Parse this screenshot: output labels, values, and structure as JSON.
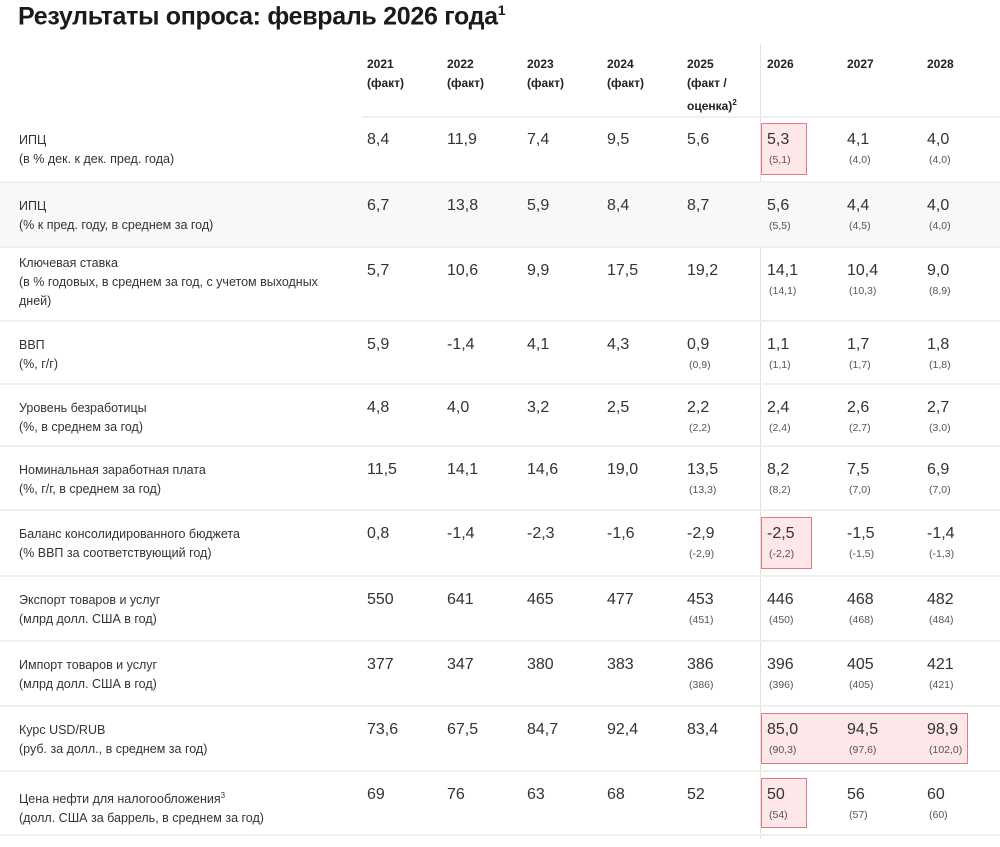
{
  "title": "Результаты опроса: февраль 2026 года",
  "title_footnote": "1",
  "highlight_color": "#fde7e8",
  "highlight_border": "#e07a7f",
  "columns": [
    {
      "year": "2021",
      "note": "(факт)"
    },
    {
      "year": "2022",
      "note": "(факт)"
    },
    {
      "year": "2023",
      "note": "(факт)"
    },
    {
      "year": "2024",
      "note": "(факт)"
    },
    {
      "year": "2025",
      "note": "(факт /",
      "note2": "оценка)",
      "footnote": "2"
    },
    {
      "year": "2026"
    },
    {
      "year": "2027"
    },
    {
      "year": "2028"
    }
  ],
  "rows": [
    {
      "label": "ИПЦ",
      "sub": "(в % дек. к дек. пред. года)",
      "values": [
        "8,4",
        "11,9",
        "7,4",
        "9,5",
        "5,6",
        "5,3",
        "4,1",
        "4,0"
      ],
      "prev": [
        "",
        "",
        "",
        "",
        "",
        "(5,1)",
        "(4,0)",
        "(4,0)"
      ],
      "highlight": [
        "2026"
      ]
    },
    {
      "label": "ИПЦ",
      "sub": "(% к пред. году, в среднем за год)",
      "values": [
        "6,7",
        "13,8",
        "5,9",
        "8,4",
        "8,7",
        "5,6",
        "4,4",
        "4,0"
      ],
      "prev": [
        "",
        "",
        "",
        "",
        "",
        "(5,5)",
        "(4,5)",
        "(4,0)"
      ],
      "highlight": []
    },
    {
      "label": "Ключевая ставка",
      "sub": "(в % годовых, в среднем за год, с учетом выходных",
      "sub2": "дней)",
      "values": [
        "5,7",
        "10,6",
        "9,9",
        "17,5",
        "19,2",
        "14,1",
        "10,4",
        "9,0"
      ],
      "prev": [
        "",
        "",
        "",
        "",
        "",
        "(14,1)",
        "(10,3)",
        "(8,9)"
      ],
      "highlight": []
    },
    {
      "label": "ВВП",
      "sub": "(%, г/г)",
      "values": [
        "5,9",
        "-1,4",
        "4,1",
        "4,3",
        "0,9",
        "1,1",
        "1,7",
        "1,8"
      ],
      "prev": [
        "",
        "",
        "",
        "",
        "(0,9)",
        "(1,1)",
        "(1,7)",
        "(1,8)"
      ],
      "highlight": []
    },
    {
      "label": "Уровень безработицы",
      "sub": "(%, в среднем за год)",
      "values": [
        "4,8",
        "4,0",
        "3,2",
        "2,5",
        "2,2",
        "2,4",
        "2,6",
        "2,7"
      ],
      "prev": [
        "",
        "",
        "",
        "",
        "(2,2)",
        "(2,4)",
        "(2,7)",
        "(3,0)"
      ],
      "highlight": []
    },
    {
      "label": "Номинальная заработная плата",
      "sub": "(%, г/г, в среднем за год)",
      "values": [
        "11,5",
        "14,1",
        "14,6",
        "19,0",
        "13,5",
        "8,2",
        "7,5",
        "6,9"
      ],
      "prev": [
        "",
        "",
        "",
        "",
        "(13,3)",
        "(8,2)",
        "(7,0)",
        "(7,0)"
      ],
      "highlight": []
    },
    {
      "label": "Баланс консолидированного бюджета",
      "sub": "(% ВВП за соответствующий год)",
      "values": [
        "0,8",
        "-1,4",
        "-2,3",
        "-1,6",
        "-2,9",
        "-2,5",
        "-1,5",
        "-1,4"
      ],
      "prev": [
        "",
        "",
        "",
        "",
        "(-2,9)",
        "(-2,2)",
        "(-1,5)",
        "(-1,3)"
      ],
      "highlight": [
        "2026"
      ]
    },
    {
      "label": "Экспорт товаров и услуг",
      "sub": "(млрд долл. США в год)",
      "values": [
        "550",
        "641",
        "465",
        "477",
        "453",
        "446",
        "468",
        "482"
      ],
      "prev": [
        "",
        "",
        "",
        "",
        "(451)",
        "(450)",
        "(468)",
        "(484)"
      ],
      "highlight": []
    },
    {
      "label": "Импорт товаров и услуг",
      "sub": "(млрд долл. США в год)",
      "values": [
        "377",
        "347",
        "380",
        "383",
        "386",
        "396",
        "405",
        "421"
      ],
      "prev": [
        "",
        "",
        "",
        "",
        "(386)",
        "(396)",
        "(405)",
        "(421)"
      ],
      "highlight": []
    },
    {
      "label": "Курс USD/RUB",
      "sub": "(руб. за долл., в среднем за год)",
      "values": [
        "73,6",
        "67,5",
        "84,7",
        "92,4",
        "83,4",
        "85,0",
        "94,5",
        "98,9"
      ],
      "prev": [
        "",
        "",
        "",
        "",
        "",
        "(90,3)",
        "(97,6)",
        "(102,0)"
      ],
      "highlight": [
        "2026",
        "2027",
        "2028"
      ]
    },
    {
      "label": "Цена нефти для налогообложения",
      "label_footnote": "3",
      "sub": "(долл. США за баррель, в среднем за год)",
      "values": [
        "69",
        "76",
        "63",
        "68",
        "52",
        "50",
        "56",
        "60"
      ],
      "prev": [
        "",
        "",
        "",
        "",
        "",
        "(54)",
        "(57)",
        "(60)"
      ],
      "highlight": [
        "2026"
      ]
    }
  ]
}
